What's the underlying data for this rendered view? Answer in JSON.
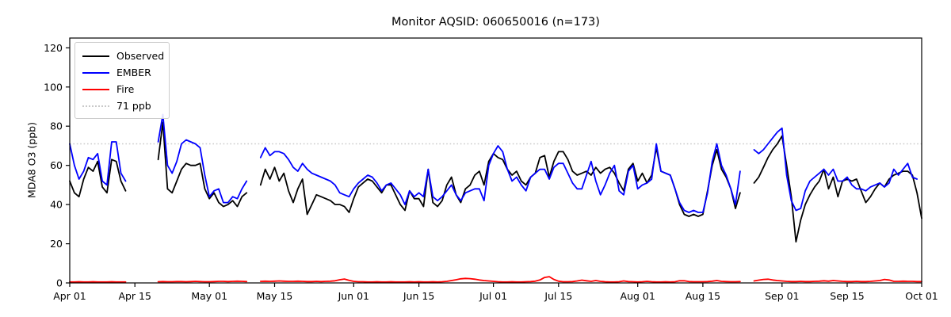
{
  "chart_data": {
    "type": "line",
    "title": "Monitor AQSID: 060650016 (n=173)",
    "xlabel": "",
    "ylabel": "MDA8 O3 (ppb)",
    "ylim": [
      0,
      125
    ],
    "yticks": [
      0,
      20,
      40,
      60,
      80,
      100,
      120
    ],
    "days_total": 183,
    "x_start_label": "Apr 01",
    "xticks": [
      {
        "day": 0,
        "label": "Apr 01"
      },
      {
        "day": 14,
        "label": "Apr 15"
      },
      {
        "day": 30,
        "label": "May 01"
      },
      {
        "day": 44,
        "label": "May 15"
      },
      {
        "day": 61,
        "label": "Jun 01"
      },
      {
        "day": 75,
        "label": "Jun 15"
      },
      {
        "day": 91,
        "label": "Jul 01"
      },
      {
        "day": 105,
        "label": "Jul 15"
      },
      {
        "day": 122,
        "label": "Aug 01"
      },
      {
        "day": 136,
        "label": "Aug 15"
      },
      {
        "day": 153,
        "label": "Sep 01"
      },
      {
        "day": 167,
        "label": "Sep 15"
      },
      {
        "day": 183,
        "label": "Oct 01"
      }
    ],
    "threshold": {
      "value": 71,
      "label": "71 ppb",
      "color": "#c9c9c9",
      "style": "dotted"
    },
    "legend": {
      "position": "upper-left",
      "items": [
        {
          "label": "Observed",
          "color": "#000000",
          "style": "solid"
        },
        {
          "label": "EMBER",
          "color": "#0000ff",
          "style": "solid"
        },
        {
          "label": "Fire",
          "color": "#ff0000",
          "style": "solid"
        },
        {
          "label": "71 ppb",
          "color": "#c9c9c9",
          "style": "dotted"
        }
      ]
    },
    "series": [
      {
        "name": "Observed",
        "color": "#000000",
        "values": [
          52,
          46,
          44,
          53,
          59,
          57,
          62,
          49,
          46,
          63,
          62,
          52,
          47,
          null,
          null,
          null,
          null,
          null,
          null,
          63,
          82,
          48,
          46,
          52,
          58,
          61,
          60,
          60,
          61,
          48,
          43,
          46,
          41,
          39,
          40,
          42,
          39,
          44,
          46,
          null,
          null,
          50,
          58,
          53,
          59,
          52,
          56,
          47,
          41,
          48,
          53,
          35,
          40,
          45,
          44,
          43,
          42,
          40,
          40,
          39,
          36,
          43,
          49,
          51,
          53,
          52,
          49,
          46,
          50,
          50,
          45,
          40,
          37,
          47,
          43,
          43,
          39,
          58,
          41,
          39,
          42,
          50,
          54,
          45,
          41,
          48,
          50,
          55,
          57,
          50,
          62,
          66,
          64,
          63,
          58,
          55,
          57,
          52,
          50,
          54,
          56,
          64,
          65,
          54,
          62,
          67,
          67,
          63,
          57,
          55,
          56,
          57,
          55,
          59,
          56,
          58,
          59,
          56,
          51,
          47,
          58,
          61,
          52,
          56,
          51,
          55,
          69,
          57,
          56,
          55,
          48,
          40,
          35,
          34,
          35,
          34,
          35,
          47,
          60,
          68,
          58,
          54,
          48,
          38,
          46,
          null,
          null,
          51,
          54,
          59,
          64,
          68,
          71,
          75,
          60,
          44,
          21,
          32,
          40,
          45,
          49,
          52,
          58,
          48,
          54,
          44,
          52,
          53,
          52,
          53,
          47,
          41,
          44,
          48,
          51,
          49,
          53,
          55,
          56,
          57,
          57,
          55,
          46,
          33
        ]
      },
      {
        "name": "EMBER",
        "color": "#0000ff",
        "values": [
          71,
          60,
          53,
          57,
          64,
          63,
          66,
          52,
          50,
          72,
          72,
          56,
          52,
          null,
          null,
          null,
          null,
          null,
          null,
          72,
          86,
          60,
          56,
          62,
          71,
          73,
          72,
          71,
          69,
          55,
          44,
          47,
          48,
          41,
          41,
          44,
          43,
          48,
          52,
          null,
          null,
          64,
          69,
          65,
          67,
          67,
          66,
          63,
          59,
          57,
          61,
          58,
          56,
          55,
          54,
          53,
          52,
          50,
          46,
          45,
          44,
          48,
          51,
          53,
          55,
          54,
          51,
          47,
          50,
          51,
          48,
          45,
          40,
          47,
          44,
          46,
          44,
          58,
          44,
          42,
          44,
          47,
          50,
          45,
          42,
          46,
          47,
          48,
          48,
          42,
          60,
          66,
          70,
          67,
          58,
          52,
          54,
          50,
          47,
          54,
          56,
          58,
          58,
          53,
          59,
          61,
          61,
          56,
          51,
          48,
          48,
          55,
          62,
          52,
          45,
          50,
          56,
          60,
          47,
          45,
          57,
          60,
          48,
          50,
          51,
          53,
          71,
          57,
          56,
          55,
          48,
          41,
          37,
          36,
          37,
          36,
          36,
          46,
          62,
          71,
          60,
          55,
          48,
          40,
          57,
          null,
          null,
          68,
          66,
          68,
          71,
          74,
          77,
          79,
          55,
          42,
          37,
          38,
          47,
          52,
          54,
          56,
          58,
          55,
          58,
          52,
          52,
          54,
          50,
          48,
          48,
          47,
          49,
          50,
          51,
          49,
          51,
          58,
          55,
          58,
          61,
          54,
          53,
          null
        ]
      },
      {
        "name": "Fire",
        "color": "#ff0000",
        "values": [
          0.5,
          0.5,
          0.6,
          0.5,
          0.5,
          0.6,
          0.5,
          0.5,
          0.5,
          0.6,
          0.5,
          0.5,
          0.5,
          null,
          null,
          null,
          null,
          null,
          null,
          0.6,
          0.7,
          0.6,
          0.6,
          0.7,
          0.7,
          0.6,
          0.7,
          0.8,
          0.7,
          0.6,
          0.6,
          0.7,
          0.8,
          0.8,
          0.7,
          0.8,
          0.9,
          0.8,
          0.7,
          null,
          null,
          0.8,
          0.9,
          0.8,
          0.9,
          1.0,
          0.9,
          0.8,
          0.8,
          0.9,
          0.8,
          0.7,
          0.7,
          0.8,
          0.7,
          0.8,
          0.9,
          1.1,
          1.6,
          2.0,
          1.3,
          0.8,
          0.6,
          0.6,
          0.5,
          0.5,
          0.6,
          0.5,
          0.5,
          0.6,
          0.5,
          0.5,
          0.5,
          0.6,
          0.5,
          0.6,
          0.5,
          0.5,
          0.6,
          0.5,
          0.6,
          0.8,
          1.2,
          1.6,
          2.1,
          2.3,
          2.2,
          1.9,
          1.5,
          1.2,
          1.0,
          0.8,
          0.6,
          0.5,
          0.5,
          0.6,
          0.5,
          0.5,
          0.6,
          0.7,
          0.9,
          1.5,
          2.8,
          3.2,
          1.8,
          0.9,
          0.6,
          0.6,
          0.7,
          1.0,
          1.4,
          1.1,
          0.8,
          1.2,
          0.8,
          0.6,
          0.5,
          0.5,
          0.6,
          1.0,
          0.7,
          0.6,
          0.5,
          0.6,
          0.8,
          0.6,
          0.5,
          0.5,
          0.6,
          0.5,
          0.6,
          1.1,
          1.1,
          0.7,
          0.6,
          0.6,
          0.6,
          0.7,
          0.9,
          1.2,
          0.8,
          0.7,
          0.6,
          0.6,
          0.7,
          null,
          null,
          1.0,
          1.4,
          1.8,
          1.9,
          1.5,
          1.2,
          1.0,
          0.8,
          0.7,
          0.7,
          0.8,
          0.7,
          0.7,
          0.8,
          0.9,
          1.1,
          0.9,
          1.2,
          1.0,
          0.8,
          0.7,
          0.7,
          0.8,
          0.7,
          0.7,
          0.8,
          1.0,
          1.2,
          1.8,
          1.5,
          0.8,
          0.8,
          0.9,
          0.8,
          0.8,
          0.7,
          0.7
        ]
      }
    ]
  }
}
